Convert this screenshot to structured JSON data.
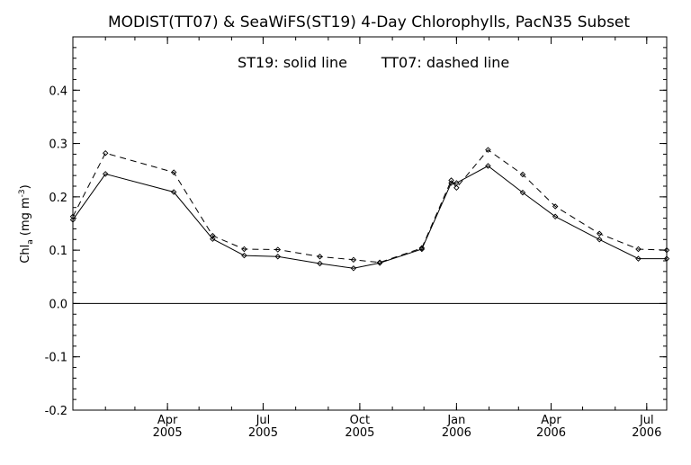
{
  "chart_data": {
    "type": "line",
    "title": "MODIST(TT07) & SeaWiFS(ST19) 4-Day Chlorophylls, PacN35 Subset",
    "annotation": {
      "st19": "ST19: solid line",
      "tt07": "TT07: dashed line"
    },
    "ylabel": {
      "main": "Chl",
      "subscript": "a",
      "units_open": " (mg m",
      "units_sup": "-3",
      "units_close": ")"
    },
    "xlim": [
      "2005-01-01",
      "2006-07-20"
    ],
    "ylim": [
      -0.2,
      0.5
    ],
    "y_ticks": [
      {
        "value": -0.2,
        "label": "-0.2"
      },
      {
        "value": -0.1,
        "label": "-0.1"
      },
      {
        "value": 0.0,
        "label": "0.0"
      },
      {
        "value": 0.1,
        "label": "0.1"
      },
      {
        "value": 0.2,
        "label": "0.2"
      },
      {
        "value": 0.3,
        "label": "0.3"
      },
      {
        "value": 0.4,
        "label": "0.4"
      }
    ],
    "x_ticks": [
      {
        "date": "2005-04-01",
        "month": "Apr",
        "year": "2005"
      },
      {
        "date": "2005-07-01",
        "month": "Jul",
        "year": "2005"
      },
      {
        "date": "2005-10-01",
        "month": "Oct",
        "year": "2005"
      },
      {
        "date": "2006-01-01",
        "month": "Jan",
        "year": "2006"
      },
      {
        "date": "2006-04-01",
        "month": "Apr",
        "year": "2006"
      },
      {
        "date": "2006-07-01",
        "month": "Jul",
        "year": "2006"
      }
    ],
    "zero_line": true,
    "grid": false,
    "series": [
      {
        "name": "ST19",
        "style": "solid",
        "color": "#000000",
        "points": [
          {
            "x": "2005-01-01",
            "y": 0.157
          },
          {
            "x": "2005-02-01",
            "y": 0.243
          },
          {
            "x": "2005-04-07",
            "y": 0.209
          },
          {
            "x": "2005-05-14",
            "y": 0.121
          },
          {
            "x": "2005-06-13",
            "y": 0.09
          },
          {
            "x": "2005-07-15",
            "y": 0.088
          },
          {
            "x": "2005-08-24",
            "y": 0.075
          },
          {
            "x": "2005-09-25",
            "y": 0.066
          },
          {
            "x": "2005-10-20",
            "y": 0.076
          },
          {
            "x": "2005-11-29",
            "y": 0.102
          },
          {
            "x": "2005-12-27",
            "y": 0.226
          },
          {
            "x": "2006-01-01",
            "y": 0.226
          },
          {
            "x": "2006-01-31",
            "y": 0.258
          },
          {
            "x": "2006-03-05",
            "y": 0.208
          },
          {
            "x": "2006-04-05",
            "y": 0.163
          },
          {
            "x": "2006-05-17",
            "y": 0.12
          },
          {
            "x": "2006-06-23",
            "y": 0.084
          },
          {
            "x": "2006-07-20",
            "y": 0.084
          }
        ]
      },
      {
        "name": "TT07",
        "style": "dashed",
        "color": "#000000",
        "points": [
          {
            "x": "2005-01-01",
            "y": 0.163
          },
          {
            "x": "2005-02-01",
            "y": 0.282
          },
          {
            "x": "2005-04-07",
            "y": 0.246
          },
          {
            "x": "2005-05-14",
            "y": 0.127
          },
          {
            "x": "2005-06-13",
            "y": 0.102
          },
          {
            "x": "2005-07-15",
            "y": 0.101
          },
          {
            "x": "2005-08-24",
            "y": 0.088
          },
          {
            "x": "2005-09-25",
            "y": 0.082
          },
          {
            "x": "2005-10-20",
            "y": 0.077
          },
          {
            "x": "2005-11-29",
            "y": 0.104
          },
          {
            "x": "2005-12-27",
            "y": 0.231
          },
          {
            "x": "2006-01-01",
            "y": 0.217
          },
          {
            "x": "2006-01-31",
            "y": 0.288
          },
          {
            "x": "2006-03-05",
            "y": 0.242
          },
          {
            "x": "2006-04-05",
            "y": 0.182
          },
          {
            "x": "2006-05-17",
            "y": 0.131
          },
          {
            "x": "2006-06-23",
            "y": 0.102
          },
          {
            "x": "2006-07-20",
            "y": 0.1
          }
        ]
      }
    ]
  }
}
